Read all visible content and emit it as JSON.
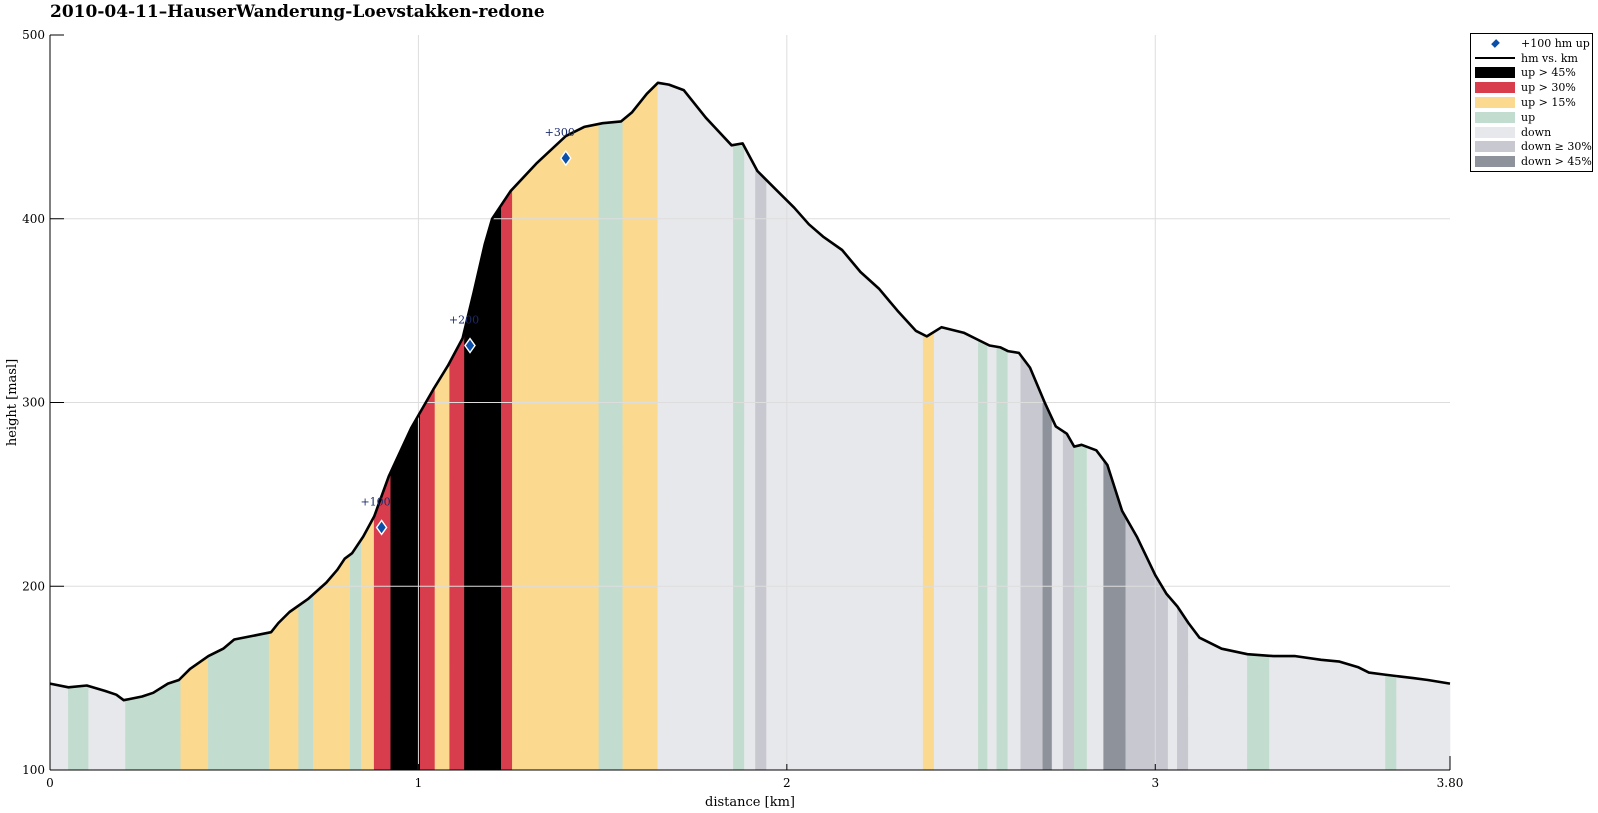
{
  "title": "2010-04-11–HauserWanderung-Loevstakken-redone",
  "chart_data": {
    "type": "area",
    "title": "2010-04-11–HauserWanderung-Loevstakken-redone",
    "xlabel": "distance [km]",
    "ylabel": "height [masl]",
    "xlim": [
      0,
      3.8
    ],
    "ylim": [
      100,
      500
    ],
    "xticks": [
      0,
      1,
      2,
      3,
      3.8
    ],
    "xtick_labels": [
      "0",
      "1",
      "2",
      "3",
      "3.80"
    ],
    "yticks": [
      100,
      200,
      300,
      400,
      500
    ],
    "ytick_labels": [
      "100",
      "200",
      "300",
      "400",
      "500"
    ],
    "grid": true,
    "legend_position": "outside-top-right",
    "profile": {
      "name": "hm vs. km",
      "x": [
        0,
        0.05,
        0.1,
        0.15,
        0.18,
        0.2,
        0.25,
        0.28,
        0.32,
        0.35,
        0.38,
        0.43,
        0.47,
        0.5,
        0.55,
        0.6,
        0.62,
        0.65,
        0.7,
        0.75,
        0.78,
        0.8,
        0.82,
        0.85,
        0.88,
        0.92,
        0.98,
        1.0,
        1.04,
        1.08,
        1.12,
        1.15,
        1.18,
        1.2,
        1.25,
        1.32,
        1.4,
        1.45,
        1.5,
        1.55,
        1.58,
        1.62,
        1.65,
        1.68,
        1.72,
        1.78,
        1.85,
        1.88,
        1.92,
        1.97,
        2.02,
        2.06,
        2.1,
        2.15,
        2.2,
        2.25,
        2.3,
        2.35,
        2.38,
        2.42,
        2.48,
        2.52,
        2.55,
        2.58,
        2.6,
        2.63,
        2.66,
        2.7,
        2.73,
        2.76,
        2.78,
        2.8,
        2.84,
        2.87,
        2.91,
        2.95,
        3.0,
        3.03,
        3.06,
        3.09,
        3.12,
        3.18,
        3.25,
        3.32,
        3.38,
        3.45,
        3.5,
        3.55,
        3.58,
        3.62,
        3.66,
        3.7,
        3.74,
        3.8
      ],
      "y": [
        147,
        145,
        146,
        143,
        141,
        138,
        140,
        142,
        147,
        149,
        155,
        162,
        166,
        171,
        173,
        175,
        180,
        186,
        193,
        202,
        209,
        215,
        218,
        227,
        238,
        260,
        286,
        293,
        307,
        320,
        335,
        360,
        386,
        400,
        415,
        430,
        445,
        450,
        452,
        453,
        458,
        468,
        474,
        473,
        470,
        455,
        440,
        441,
        426,
        416,
        406,
        397,
        390,
        383,
        371,
        362,
        350,
        339,
        336,
        341,
        338,
        334,
        331,
        330,
        328,
        327,
        319,
        300,
        287,
        283,
        276,
        277,
        274,
        266,
        241,
        227,
        206,
        196,
        189,
        180,
        172,
        166,
        163,
        162,
        162,
        160,
        159,
        156,
        153,
        152,
        151,
        150,
        149,
        147
      ]
    },
    "markers": {
      "name": "+100 hm up",
      "x": [
        0.9,
        1.14,
        1.4
      ],
      "y": [
        232,
        331,
        433
      ],
      "labels": [
        "+100",
        "+200",
        "+300"
      ]
    },
    "segments": [
      {
        "x0": 0.0,
        "x1": 0.05,
        "class": "down"
      },
      {
        "x0": 0.05,
        "x1": 0.105,
        "class": "up"
      },
      {
        "x0": 0.105,
        "x1": 0.205,
        "class": "down"
      },
      {
        "x0": 0.205,
        "x1": 0.355,
        "class": "up"
      },
      {
        "x0": 0.355,
        "x1": 0.43,
        "class": "up15"
      },
      {
        "x0": 0.43,
        "x1": 0.595,
        "class": "up"
      },
      {
        "x0": 0.595,
        "x1": 0.675,
        "class": "up15"
      },
      {
        "x0": 0.675,
        "x1": 0.715,
        "class": "up"
      },
      {
        "x0": 0.715,
        "x1": 0.815,
        "class": "up15"
      },
      {
        "x0": 0.815,
        "x1": 0.845,
        "class": "up"
      },
      {
        "x0": 0.845,
        "x1": 0.88,
        "class": "up15"
      },
      {
        "x0": 0.88,
        "x1": 0.925,
        "class": "up30"
      },
      {
        "x0": 0.925,
        "x1": 1.005,
        "class": "up45"
      },
      {
        "x0": 1.005,
        "x1": 1.045,
        "class": "up30"
      },
      {
        "x0": 1.045,
        "x1": 1.085,
        "class": "up15"
      },
      {
        "x0": 1.085,
        "x1": 1.125,
        "class": "up30"
      },
      {
        "x0": 1.125,
        "x1": 1.225,
        "class": "up45"
      },
      {
        "x0": 1.225,
        "x1": 1.255,
        "class": "up30"
      },
      {
        "x0": 1.255,
        "x1": 1.49,
        "class": "up15"
      },
      {
        "x0": 1.49,
        "x1": 1.555,
        "class": "up"
      },
      {
        "x0": 1.555,
        "x1": 1.65,
        "class": "up15"
      },
      {
        "x0": 1.65,
        "x1": 1.855,
        "class": "down"
      },
      {
        "x0": 1.855,
        "x1": 1.885,
        "class": "up"
      },
      {
        "x0": 1.885,
        "x1": 1.915,
        "class": "down"
      },
      {
        "x0": 1.915,
        "x1": 1.945,
        "class": "down30"
      },
      {
        "x0": 1.945,
        "x1": 2.37,
        "class": "down"
      },
      {
        "x0": 2.37,
        "x1": 2.4,
        "class": "up15"
      },
      {
        "x0": 2.4,
        "x1": 2.52,
        "class": "down"
      },
      {
        "x0": 2.52,
        "x1": 2.545,
        "class": "up"
      },
      {
        "x0": 2.545,
        "x1": 2.57,
        "class": "down"
      },
      {
        "x0": 2.57,
        "x1": 2.6,
        "class": "up"
      },
      {
        "x0": 2.6,
        "x1": 2.635,
        "class": "down"
      },
      {
        "x0": 2.635,
        "x1": 2.695,
        "class": "down30"
      },
      {
        "x0": 2.695,
        "x1": 2.72,
        "class": "down45"
      },
      {
        "x0": 2.72,
        "x1": 2.75,
        "class": "down"
      },
      {
        "x0": 2.75,
        "x1": 2.78,
        "class": "down30"
      },
      {
        "x0": 2.78,
        "x1": 2.815,
        "class": "up"
      },
      {
        "x0": 2.815,
        "x1": 2.86,
        "class": "down"
      },
      {
        "x0": 2.86,
        "x1": 2.92,
        "class": "down45"
      },
      {
        "x0": 2.92,
        "x1": 3.035,
        "class": "down30"
      },
      {
        "x0": 3.035,
        "x1": 3.06,
        "class": "down"
      },
      {
        "x0": 3.06,
        "x1": 3.09,
        "class": "down30"
      },
      {
        "x0": 3.09,
        "x1": 3.25,
        "class": "down"
      },
      {
        "x0": 3.25,
        "x1": 3.31,
        "class": "up"
      },
      {
        "x0": 3.31,
        "x1": 3.625,
        "class": "down"
      },
      {
        "x0": 3.625,
        "x1": 3.655,
        "class": "up"
      },
      {
        "x0": 3.655,
        "x1": 3.8,
        "class": "down"
      }
    ],
    "colors": {
      "up45": "#000000",
      "up30": "#d83d4d",
      "up15": "#fbd98f",
      "up": "#c2ddcf",
      "down": "#e7e8eb",
      "down30": "#c7c8d0",
      "down45": "#8e929b",
      "line": "#000000",
      "marker": "#0b4fa8",
      "marker_label": "#1a2a6c",
      "grid": "#dddddd"
    },
    "legend": [
      {
        "key": "marker",
        "label": "+100 hm up",
        "kind": "marker"
      },
      {
        "key": "line",
        "label": "hm vs. km",
        "kind": "line"
      },
      {
        "key": "up45",
        "label": "up > 45%",
        "kind": "box"
      },
      {
        "key": "up30",
        "label": "up > 30%",
        "kind": "box"
      },
      {
        "key": "up15",
        "label": "up > 15%",
        "kind": "box"
      },
      {
        "key": "up",
        "label": "up",
        "kind": "box"
      },
      {
        "key": "down",
        "label": "down",
        "kind": "box"
      },
      {
        "key": "down30",
        "label": "down ≥ 30%",
        "kind": "box"
      },
      {
        "key": "down45",
        "label": "down > 45%",
        "kind": "box"
      }
    ]
  }
}
